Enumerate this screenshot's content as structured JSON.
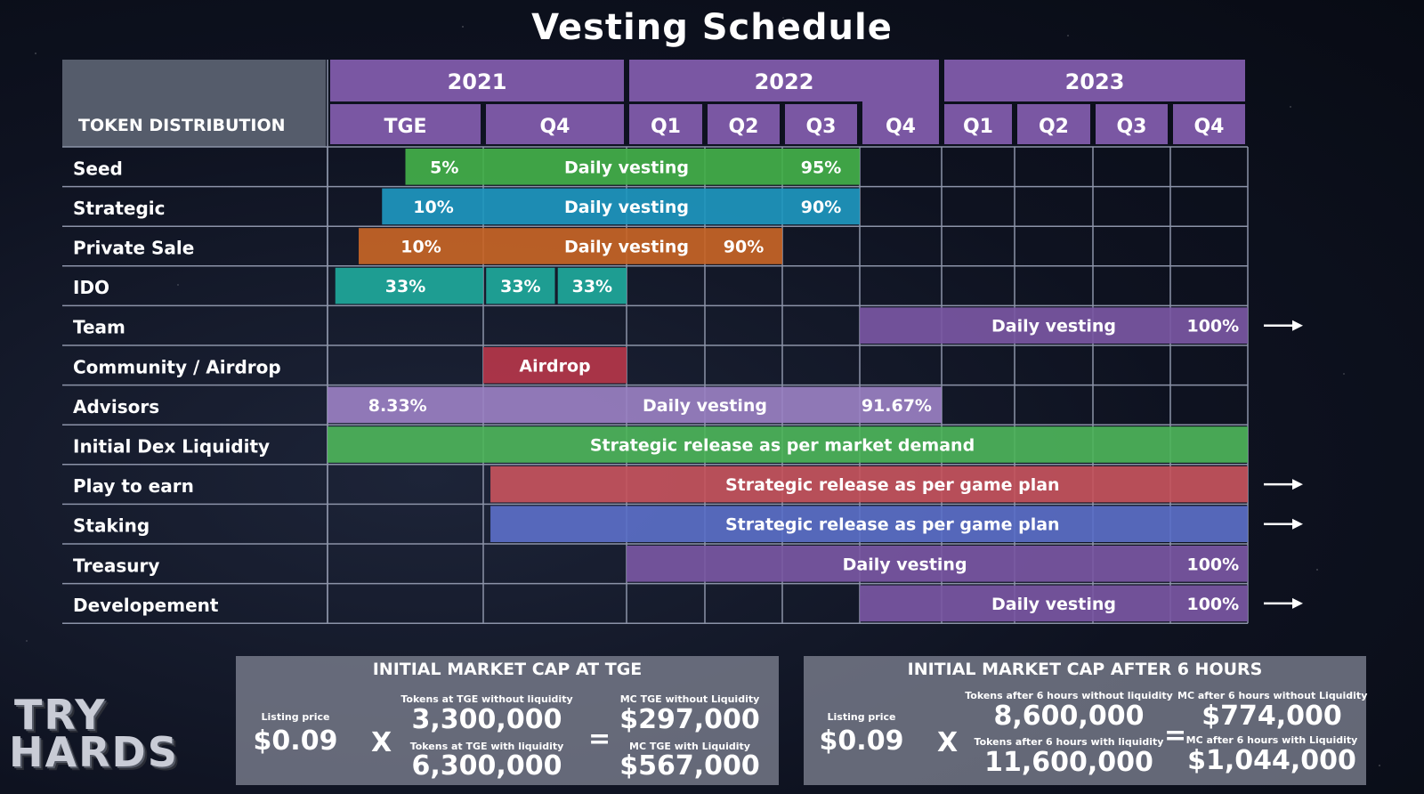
{
  "title": "Vesting Schedule",
  "chart_data": {
    "type": "gantt",
    "row_header": "TOKEN DISTRIBUTION",
    "years": [
      {
        "label": "2021",
        "span": [
          "TGE",
          "Q4 2021"
        ]
      },
      {
        "label": "2022",
        "span": [
          "Q1 2022",
          "Q4 2022"
        ]
      },
      {
        "label": "2023",
        "span": [
          "Q1 2023",
          "Q4 2023"
        ]
      }
    ],
    "periods": [
      "TGE",
      "Q4",
      "Q1",
      "Q2",
      "Q3",
      "Q4",
      "Q1",
      "Q2",
      "Q3",
      "Q4"
    ],
    "rows": [
      {
        "name": "Seed",
        "bars": [
          {
            "start": 0.5,
            "end": 1,
            "color": "#43b04a",
            "texts": [
              {
                "label": "5%",
                "at": 0.75
              }
            ]
          },
          {
            "start": 1,
            "end": 5,
            "color": "#43b04a",
            "texts": [
              {
                "label": "Daily vesting",
                "at": 2.0
              },
              {
                "label": "95%",
                "at": 4.5
              }
            ]
          }
        ]
      },
      {
        "name": "Strategic",
        "bars": [
          {
            "start": 0.35,
            "end": 1,
            "color": "#1e97bf",
            "texts": [
              {
                "label": "10%",
                "at": 0.68
              }
            ]
          },
          {
            "start": 1,
            "end": 5,
            "color": "#1e97bf",
            "texts": [
              {
                "label": "Daily vesting",
                "at": 2.0
              },
              {
                "label": "90%",
                "at": 4.5
              }
            ]
          }
        ]
      },
      {
        "name": "Private Sale",
        "bars": [
          {
            "start": 0.2,
            "end": 1,
            "color": "#c76526",
            "texts": [
              {
                "label": "10%",
                "at": 0.6
              }
            ]
          },
          {
            "start": 1,
            "end": 4,
            "color": "#c76526",
            "texts": [
              {
                "label": "Daily vesting",
                "at": 2.0
              },
              {
                "label": "90%",
                "at": 3.5
              }
            ]
          }
        ]
      },
      {
        "name": "IDO",
        "bars": [
          {
            "start": 0.05,
            "end": 1,
            "color": "#1fa89b",
            "texts": [
              {
                "label": "33%",
                "at": 0.5
              }
            ]
          },
          {
            "start": 1.02,
            "end": 1.5,
            "color": "#1fa89b",
            "texts": [
              {
                "label": "33%",
                "at": 1.26
              }
            ]
          },
          {
            "start": 1.52,
            "end": 2,
            "color": "#1fa89b",
            "texts": [
              {
                "label": "33%",
                "at": 1.76
              }
            ]
          }
        ]
      },
      {
        "name": "Team",
        "arrow": true,
        "bars": [
          {
            "start": 5,
            "end": 10,
            "color": "#7a57a3",
            "texts": [
              {
                "label": "Daily vesting",
                "at": 7.5
              },
              {
                "label": "100%",
                "at": 9.55
              }
            ]
          }
        ]
      },
      {
        "name": "Community / Airdrop",
        "bars": [
          {
            "start": 1,
            "end": 2,
            "color": "#b5364a",
            "texts": [
              {
                "label": "Airdrop",
                "at": 1.5
              }
            ]
          }
        ]
      },
      {
        "name": "Advisors",
        "bars": [
          {
            "start": 0,
            "end": 1,
            "color": "#9a80c2",
            "texts": [
              {
                "label": "8.33%",
                "at": 0.45
              }
            ]
          },
          {
            "start": 1,
            "end": 6,
            "color": "#9a80c2",
            "texts": [
              {
                "label": "Daily vesting",
                "at": 3.0
              },
              {
                "label": "91.67%",
                "at": 5.45
              }
            ]
          }
        ]
      },
      {
        "name": "Initial Dex Liquidity",
        "bars": [
          {
            "start": 0,
            "end": 10,
            "color": "#4db45a",
            "texts": [
              {
                "label": "Strategic release as per market demand",
                "at": 4.0
              }
            ]
          }
        ]
      },
      {
        "name": "Play to earn",
        "arrow": true,
        "bars": [
          {
            "start": 1.05,
            "end": 10,
            "color": "#c5545d",
            "texts": [
              {
                "label": "Strategic release as per game plan",
                "at": 5.4
              }
            ]
          }
        ]
      },
      {
        "name": "Staking",
        "arrow": true,
        "bars": [
          {
            "start": 1.05,
            "end": 10,
            "color": "#5b6fc7",
            "texts": [
              {
                "label": "Strategic release as per game plan",
                "at": 5.4
              }
            ]
          }
        ]
      },
      {
        "name": "Treasury",
        "bars": [
          {
            "start": 2,
            "end": 10,
            "color": "#7a57a3",
            "texts": [
              {
                "label": "Daily vesting",
                "at": 5.55
              },
              {
                "label": "100%",
                "at": 9.55
              }
            ]
          }
        ]
      },
      {
        "name": "Developement",
        "arrow": true,
        "bars": [
          {
            "start": 5,
            "end": 10,
            "color": "#7a57a3",
            "texts": [
              {
                "label": "Daily vesting",
                "at": 7.5
              },
              {
                "label": "100%",
                "at": 9.55
              }
            ]
          }
        ]
      }
    ]
  },
  "market_cap": [
    {
      "title": "INITIAL MARKET CAP AT TGE",
      "listing_label": "Listing price",
      "listing_value": "$0.09",
      "times": "X",
      "equals": "=",
      "tokens_without_label": "Tokens at TGE without liquidity",
      "tokens_without_value": "3,300,000",
      "tokens_with_label": "Tokens at TGE with liquidity",
      "tokens_with_value": "6,300,000",
      "mc_without_label": "MC TGE without Liquidity",
      "mc_without_value": "$297,000",
      "mc_with_label": "MC TGE with Liquidity",
      "mc_with_value": "$567,000"
    },
    {
      "title": "INITIAL MARKET CAP AFTER 6 HOURS",
      "listing_label": "Listing price",
      "listing_value": "$0.09",
      "times": "X",
      "equals": "=",
      "tokens_without_label": "Tokens after 6 hours without liquidity",
      "tokens_without_value": "8,600,000",
      "tokens_with_label": "Tokens after 6 hours with liquidity",
      "tokens_with_value": "11,600,000",
      "mc_without_label": "MC after 6 hours without Liquidity",
      "mc_without_value": "$774,000",
      "mc_with_label": "MC after 6 hours with Liquidity",
      "mc_with_value": "$1,044,000"
    }
  ],
  "logo": {
    "line1": "TRY",
    "line2": "HARDS"
  }
}
